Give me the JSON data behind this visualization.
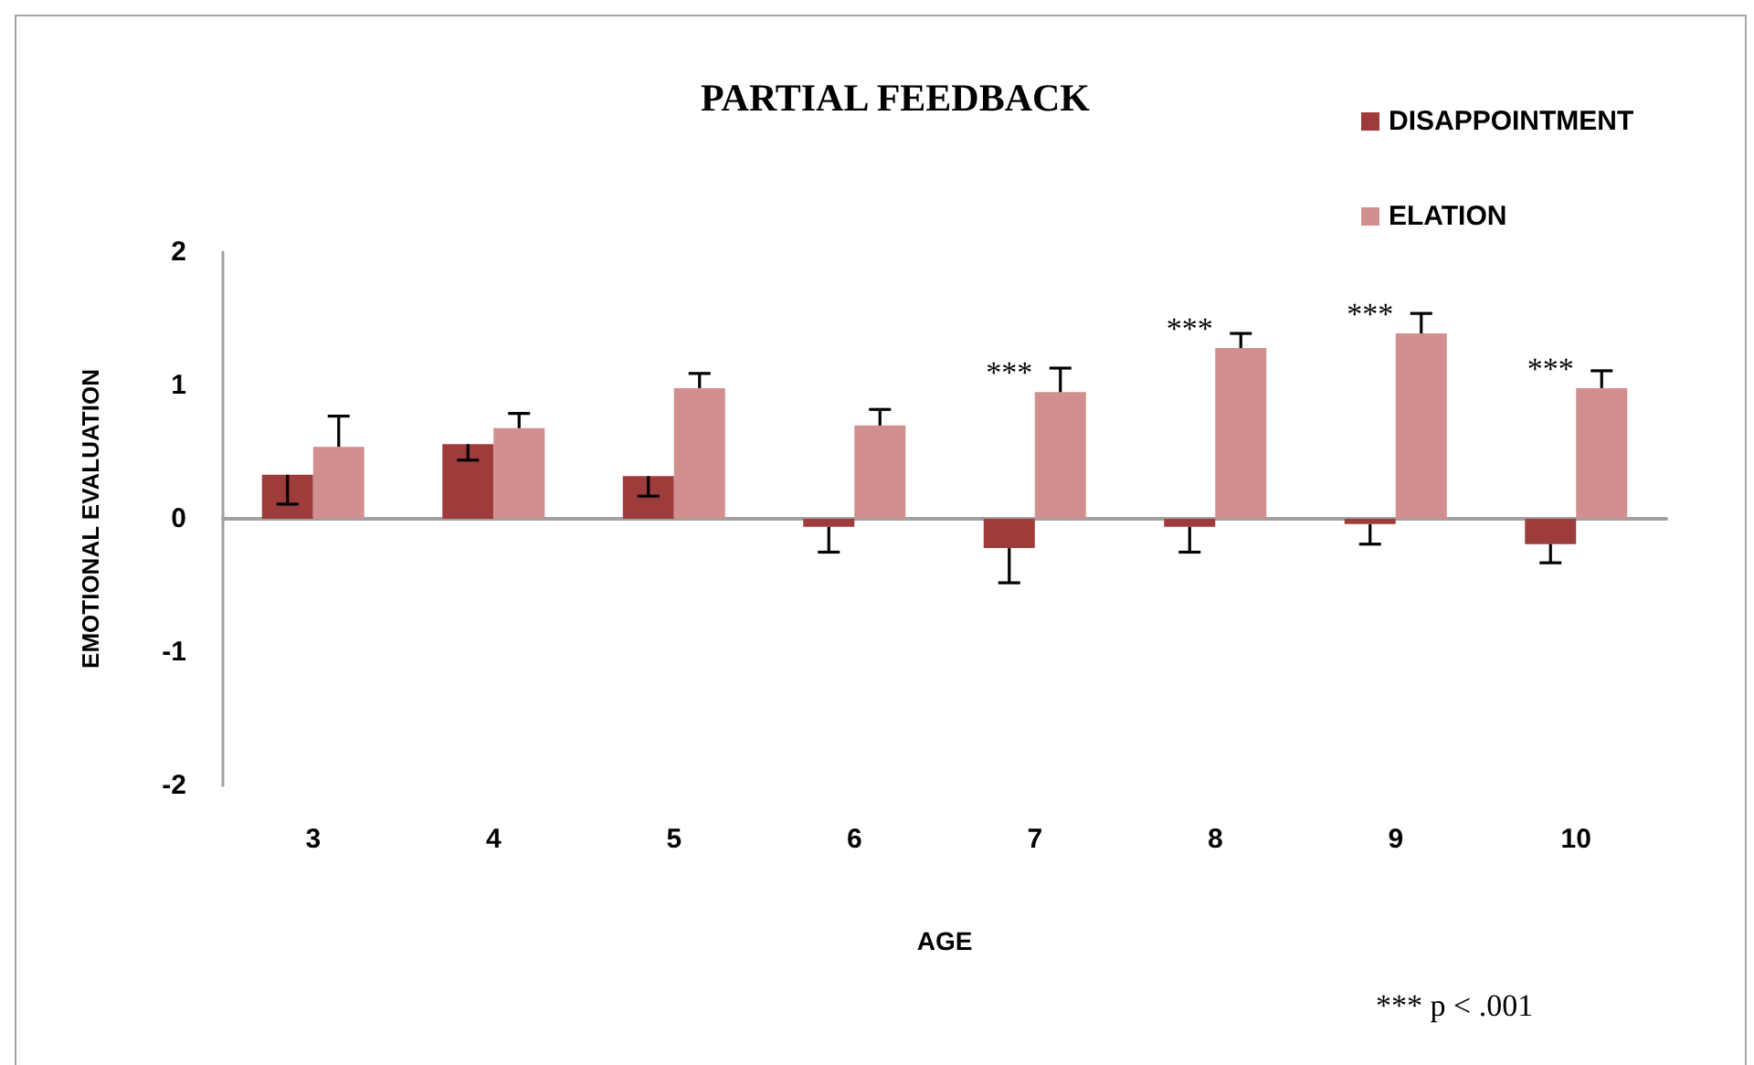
{
  "chart_data": {
    "type": "bar",
    "title": "PARTIAL FEEDBACK",
    "xlabel": "AGE",
    "ylabel": "EMOTIONAL EVALUATION",
    "categories": [
      "3",
      "4",
      "5",
      "6",
      "7",
      "8",
      "9",
      "10"
    ],
    "series": [
      {
        "name": "DISAPPOINTMENT",
        "color": "#9e3c3c",
        "values": [
          0.33,
          0.56,
          0.32,
          -0.06,
          -0.22,
          -0.06,
          -0.04,
          -0.19
        ],
        "errors": [
          [
            0.11,
            0.33
          ],
          [
            0.44,
            0.56
          ],
          [
            0.17,
            0.32
          ],
          [
            -0.25,
            -0.06
          ],
          [
            -0.48,
            -0.22
          ],
          [
            -0.25,
            -0.06
          ],
          [
            -0.19,
            -0.04
          ],
          [
            -0.33,
            -0.19
          ]
        ]
      },
      {
        "name": "ELATION",
        "color": "#d18f8f",
        "values": [
          0.54,
          0.68,
          0.98,
          0.7,
          0.95,
          1.28,
          1.39,
          0.98
        ],
        "errors": [
          [
            0.54,
            0.77
          ],
          [
            0.68,
            0.79
          ],
          [
            0.98,
            1.09
          ],
          [
            0.7,
            0.82
          ],
          [
            0.95,
            1.13
          ],
          [
            1.28,
            1.39
          ],
          [
            1.39,
            1.54
          ],
          [
            0.98,
            1.11
          ]
        ]
      }
    ],
    "ylim": [
      -2,
      2
    ],
    "yticks": [
      -2,
      -1,
      0,
      1,
      2
    ],
    "legend": "top right",
    "annotations": [
      {
        "text": "***",
        "x": "7",
        "y": 0.95
      },
      {
        "text": "***",
        "x": "8",
        "y": 1.28
      },
      {
        "text": "***",
        "x": "9",
        "y": 1.39
      },
      {
        "text": "***",
        "x": "10",
        "y": 0.98
      },
      "*** p < .001"
    ]
  }
}
